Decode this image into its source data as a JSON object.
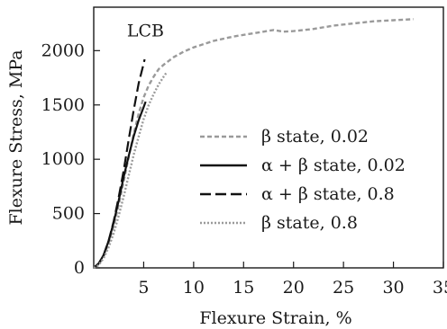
{
  "chart_data": {
    "type": "line",
    "xlabel": "Flexure Strain, %",
    "ylabel": "Flexure Stress, MPa",
    "xlim": [
      0,
      35
    ],
    "ylim": [
      0,
      2400
    ],
    "x_ticks": [
      5,
      10,
      15,
      20,
      25,
      30,
      35
    ],
    "y_ticks": [
      0,
      500,
      1000,
      1500,
      2000
    ],
    "grid": false,
    "legend_position": "right",
    "annotations": [
      {
        "text": "LCB",
        "x": 5.0,
        "y": 2180
      }
    ],
    "series": [
      {
        "name": "β state, 0.02",
        "color": "#9a9a9a",
        "dash": "dashed-short",
        "x": [
          0,
          0.5,
          1.0,
          1.5,
          2.0,
          2.5,
          3.0,
          3.5,
          4.0,
          4.5,
          5.0,
          5.5,
          6.0,
          6.5,
          7.0,
          8.0,
          9.0,
          10.0,
          12.0,
          14.0,
          16.0,
          18.0,
          19.0,
          20.0,
          21.0,
          22.0,
          24.0,
          26.0,
          28.0,
          30.0,
          32.0
        ],
        "y": [
          0,
          30,
          110,
          230,
          390,
          580,
          800,
          1020,
          1230,
          1420,
          1570,
          1680,
          1760,
          1830,
          1870,
          1940,
          1990,
          2030,
          2090,
          2130,
          2160,
          2190,
          2175,
          2180,
          2190,
          2200,
          2230,
          2250,
          2270,
          2280,
          2290
        ]
      },
      {
        "name": "α + β state, 0.02",
        "color": "#111111",
        "dash": "solid",
        "x": [
          0,
          0.5,
          1.0,
          1.5,
          2.0,
          2.5,
          3.0,
          3.5,
          4.0,
          4.5,
          5.0,
          5.2
        ],
        "y": [
          0,
          40,
          120,
          250,
          420,
          620,
          840,
          1030,
          1210,
          1360,
          1480,
          1530
        ]
      },
      {
        "name": "α + β state, 0.8",
        "color": "#111111",
        "dash": "dashed-long",
        "x": [
          0,
          0.5,
          1.0,
          1.5,
          2.0,
          2.5,
          3.0,
          3.5,
          4.0,
          4.5,
          5.0,
          5.1
        ],
        "y": [
          0,
          40,
          120,
          250,
          430,
          650,
          900,
          1180,
          1450,
          1700,
          1880,
          1920
        ]
      },
      {
        "name": "β state, 0.8",
        "color": "#9a9a9a",
        "dash": "dotted",
        "x": [
          0,
          0.5,
          1.0,
          1.5,
          2.0,
          2.5,
          3.0,
          3.5,
          4.0,
          4.5,
          5.0,
          5.5,
          6.0,
          6.5,
          7.0,
          7.3
        ],
        "y": [
          0,
          25,
          90,
          190,
          320,
          480,
          660,
          850,
          1040,
          1210,
          1370,
          1500,
          1600,
          1690,
          1760,
          1800
        ]
      }
    ]
  },
  "legend": [
    {
      "label": "β state, 0.02"
    },
    {
      "label": "α + β state, 0.02"
    },
    {
      "label": "α + β state, 0.8"
    },
    {
      "label": "β state, 0.8"
    }
  ]
}
